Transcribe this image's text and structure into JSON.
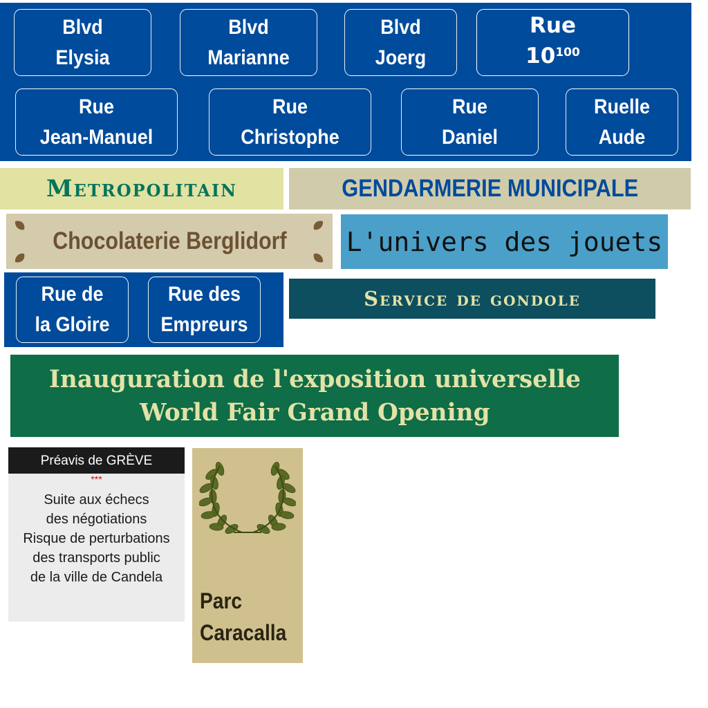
{
  "street_signs_top": [
    {
      "line1": "Blvd",
      "line2": "Elysia"
    },
    {
      "line1": "Blvd",
      "line2": "Marianne"
    },
    {
      "line1": "Blvd",
      "line2": "Joerg"
    },
    {
      "line1": "Rue",
      "line2": "10",
      "line2_sup": "100"
    }
  ],
  "street_signs_bottom": [
    {
      "line1": "Rue",
      "line2": "Jean-Manuel"
    },
    {
      "line1": "Rue",
      "line2": "Christophe"
    },
    {
      "line1": "Rue",
      "line2": "Daniel"
    },
    {
      "line1": "Ruelle",
      "line2": "Aude"
    }
  ],
  "banners": {
    "metro": "Metropolitain",
    "gendarmerie": "GENDARMERIE MUNICIPALE",
    "chocolaterie": "Chocolaterie Berglidorf",
    "jouets": "L'univers des jouets",
    "gondole": "Service de gondole"
  },
  "street_signs_small": [
    {
      "line1": "Rue de",
      "line2": "la Gloire"
    },
    {
      "line1": "Rue des",
      "line2": "Empreurs"
    }
  ],
  "exposition": {
    "line1": "Inauguration de l'exposition universelle",
    "line2": "World Fair Grand Opening"
  },
  "strike_notice": {
    "header": "Préavis de GRÈVE",
    "separator": "***",
    "lines": [
      "Suite aux échecs",
      "des négotiations",
      "Risque de perturbations",
      "des transports public",
      "de la ville de Candela"
    ]
  },
  "park": {
    "line1": "Parc",
    "line2": "Caracalla",
    "icon": "laurel-wreath-icon"
  },
  "colors": {
    "sign_blue": "#004b9b",
    "metro_bg": "#e2e2a3",
    "metro_text": "#06745a",
    "gendarmerie_bg": "#d0ccab",
    "chocolaterie_bg": "#d4cbad",
    "chocolaterie_text": "#6b5232",
    "jouets_bg": "#4aa0c9",
    "gondole_bg": "#0d4e5f",
    "expo_bg": "#0f6d48",
    "expo_text": "#e3e2a6",
    "strike_bg": "#ececec",
    "strike_header_bg": "#1b1b1b",
    "strike_stars": "#cc1010",
    "park_bg": "#cfc08e",
    "laurel": "#5a6a23"
  }
}
